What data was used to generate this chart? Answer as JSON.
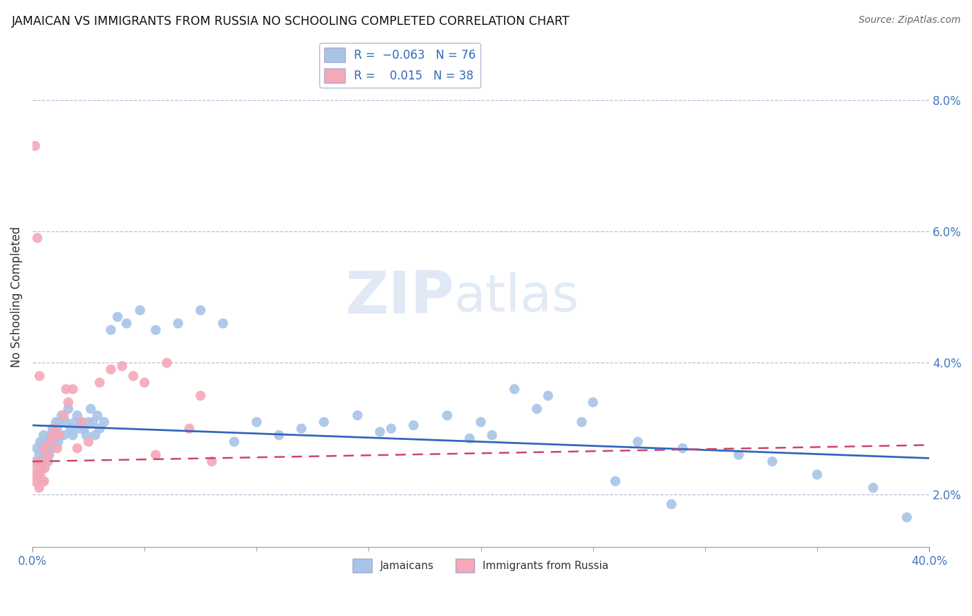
{
  "title": "JAMAICAN VS IMMIGRANTS FROM RUSSIA NO SCHOOLING COMPLETED CORRELATION CHART",
  "source": "Source: ZipAtlas.com",
  "ylabel": "No Schooling Completed",
  "right_ytick_vals": [
    2.0,
    4.0,
    6.0,
    8.0
  ],
  "jamaicans_color": "#a8c4e8",
  "russia_color": "#f4a8b8",
  "trend_jamaicans_color": "#3366bb",
  "trend_russia_color": "#cc4466",
  "watermark_zip": "ZIP",
  "watermark_atlas": "atlas",
  "xlim": [
    0.0,
    40.0
  ],
  "ylim": [
    1.2,
    8.8
  ],
  "jamaicans_trend_x0": 0.0,
  "jamaicans_trend_y0": 3.05,
  "jamaicans_trend_x1": 40.0,
  "jamaicans_trend_y1": 2.55,
  "russia_trend_x0": 0.0,
  "russia_trend_y0": 2.5,
  "russia_trend_x1": 40.0,
  "russia_trend_y1": 2.75,
  "jamaicans_x": [
    0.15,
    0.2,
    0.25,
    0.3,
    0.35,
    0.4,
    0.45,
    0.5,
    0.55,
    0.6,
    0.65,
    0.7,
    0.75,
    0.8,
    0.85,
    0.9,
    0.95,
    1.0,
    1.05,
    1.1,
    1.15,
    1.2,
    1.3,
    1.4,
    1.5,
    1.6,
    1.7,
    1.8,
    1.9,
    2.0,
    2.1,
    2.2,
    2.3,
    2.4,
    2.5,
    2.6,
    2.7,
    2.8,
    2.9,
    3.0,
    3.2,
    3.5,
    3.8,
    4.2,
    4.8,
    5.5,
    6.5,
    7.5,
    8.5,
    10.0,
    12.0,
    14.5,
    16.0,
    18.5,
    20.0,
    21.5,
    23.0,
    25.0,
    27.0,
    29.0,
    31.5,
    33.0,
    35.0,
    37.5,
    39.0,
    20.5,
    22.5,
    24.5,
    9.0,
    11.0,
    13.0,
    15.5,
    17.0,
    19.5,
    26.0,
    28.5
  ],
  "jamaicans_y": [
    2.5,
    2.7,
    2.3,
    2.6,
    2.8,
    2.5,
    2.4,
    2.9,
    2.6,
    2.7,
    2.8,
    2.5,
    2.6,
    2.9,
    2.7,
    3.0,
    2.8,
    2.9,
    3.1,
    3.0,
    2.8,
    3.1,
    3.2,
    2.9,
    3.1,
    3.3,
    3.0,
    2.9,
    3.1,
    3.2,
    3.0,
    3.1,
    3.0,
    2.9,
    3.1,
    3.3,
    3.1,
    2.9,
    3.2,
    3.0,
    3.1,
    4.5,
    4.7,
    4.6,
    4.8,
    4.5,
    4.6,
    4.8,
    4.6,
    3.1,
    3.0,
    3.2,
    3.0,
    3.2,
    3.1,
    3.6,
    3.5,
    3.4,
    2.8,
    2.7,
    2.6,
    2.5,
    2.3,
    2.1,
    1.65,
    2.9,
    3.3,
    3.1,
    2.8,
    2.9,
    3.1,
    2.95,
    3.05,
    2.85,
    2.2,
    1.85
  ],
  "russia_x": [
    0.1,
    0.15,
    0.2,
    0.25,
    0.3,
    0.35,
    0.4,
    0.45,
    0.5,
    0.55,
    0.6,
    0.7,
    0.8,
    0.9,
    1.0,
    1.1,
    1.2,
    1.4,
    1.6,
    1.8,
    2.0,
    2.2,
    2.5,
    3.0,
    3.5,
    4.0,
    4.5,
    5.0,
    5.5,
    6.0,
    7.0,
    7.5,
    8.0,
    0.12,
    0.22,
    0.32,
    0.52,
    1.5
  ],
  "russia_y": [
    2.2,
    2.4,
    2.3,
    2.5,
    2.1,
    2.3,
    2.4,
    2.2,
    2.7,
    2.4,
    2.5,
    2.6,
    2.8,
    2.9,
    3.0,
    2.7,
    2.9,
    3.2,
    3.4,
    3.6,
    2.7,
    3.1,
    2.8,
    3.7,
    3.9,
    3.95,
    3.8,
    3.7,
    2.6,
    4.0,
    3.0,
    3.5,
    2.5,
    7.3,
    5.9,
    3.8,
    2.2,
    3.6
  ]
}
